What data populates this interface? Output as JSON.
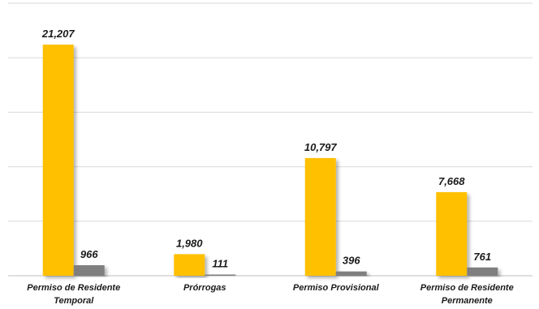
{
  "chart_data": {
    "type": "bar",
    "title": "",
    "xlabel": "",
    "ylabel": "",
    "ylim": [
      0,
      25000
    ],
    "gridlines": true,
    "legend": "none",
    "categories": [
      [
        "Permiso de Residente",
        "Temporal"
      ],
      [
        "Prórrogas"
      ],
      [
        "Permiso Provisional"
      ],
      [
        "Permiso de Residente",
        "Permanente"
      ]
    ],
    "series": [
      {
        "color": "#FFC000",
        "values": [
          21207,
          1980,
          10797,
          7668
        ],
        "labels": [
          "21,207",
          "1,980",
          "10,797",
          "7,668"
        ]
      },
      {
        "color": "#7F7F7F",
        "values": [
          966,
          111,
          396,
          761
        ],
        "labels": [
          "966",
          "111",
          "396",
          "761"
        ]
      }
    ]
  }
}
